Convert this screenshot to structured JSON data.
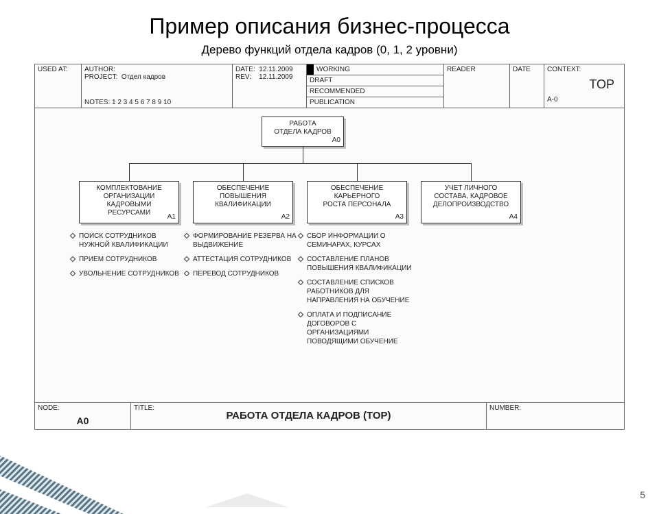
{
  "title": "Пример описания бизнес-процесса",
  "subtitle": "Дерево функций отдела кадров (0, 1, 2 уровни)",
  "header": {
    "used_at_label": "USED AT:",
    "author_label": "AUTHOR:",
    "project_label": "PROJECT:",
    "project_value": "Отдел кадров",
    "notes_label": "NOTES:  1  2  3  4  5  6  7  8  9  10",
    "date_label": "DATE:",
    "date_value": "12.11.2009",
    "rev_label": "REV:",
    "rev_value": "12.11.2009",
    "status": {
      "working": "WORKING",
      "draft": "DRAFT",
      "recommended": "RECOMMENDED",
      "publication": "PUBLICATION"
    },
    "reader_label": "READER",
    "date_col_label": "DATE",
    "context_label": "CONTEXT:",
    "context_big": "TOP",
    "context_code": "A-0"
  },
  "tree": {
    "root": {
      "label": "РАБОТА\nОТДЕЛА КАДРОВ",
      "code": "A0"
    },
    "children": [
      {
        "label": "КОМПЛЕКТОВАНИЕ\nОРГАНИЗАЦИИ\nКАДРОВЫМИ\nРЕСУРСАМИ",
        "code": "A1"
      },
      {
        "label": "ОБЕСПЕЧЕНИЕ\nПОВЫШЕНИЯ\nКВАЛИФИКАЦИИ",
        "code": "A2"
      },
      {
        "label": "ОБЕСПЕЧЕНИЕ\nКАРЬЕРНОГО\nРОСТА ПЕРСОНАЛА",
        "code": "A3"
      },
      {
        "label": "УЧЕТ ЛИЧНОГО\nСОСТАВА, КАДРОВОЕ\nДЕЛОПРОИЗВОДСТВО",
        "code": "A4"
      }
    ],
    "bullets1": [
      "ПОИСК СОТРУДНИКОВ НУЖНОЙ КВАЛИФИКАЦИИ",
      "ПРИЕМ СОТРУДНИКОВ",
      "УВОЛЬНЕНИЕ СОТРУДНИКОВ"
    ],
    "bullets2": [
      "ФОРМИРОВАНИЕ РЕЗЕРВА НА ВЫДВИЖЕНИЕ",
      "АТТЕСТАЦИЯ СОТРУДНИКОВ",
      "ПЕРЕВОД СОТРУДНИКОВ"
    ],
    "bullets3": [
      "СБОР ИНФОРМАЦИИ О СЕМИНАРАХ, КУРСАХ",
      "СОСТАВЛЕНИЕ ПЛАНОВ ПОВЫШЕНИЯ КВАЛИФИКАЦИИ",
      "СОСТАВЛЕНИЕ СПИСКОВ РАБОТНИКОВ ДЛЯ НАПРАВЛЕНИЯ НА ОБУЧЕНИЕ",
      "ОПЛАТА И ПОДПИСАНИЕ ДОГОВОРОВ С ОРГАНИЗАЦИЯМИ ПОВОДЯЩИМИ ОБУЧЕНИЕ"
    ]
  },
  "footer": {
    "node_label": "NODE:",
    "node_value": "A0",
    "title_label": "TITLE:",
    "title_value": "РАБОТА ОТДЕЛА КАДРОВ (TOP)",
    "number_label": "NUMBER:"
  },
  "page_number": "5",
  "colors": {
    "frame_border": "#666666",
    "box_border": "#333333",
    "box_shadow": "#bfbfbf",
    "decor_light": "#d6e5ee",
    "decor_dark": "#3e5a6b"
  }
}
